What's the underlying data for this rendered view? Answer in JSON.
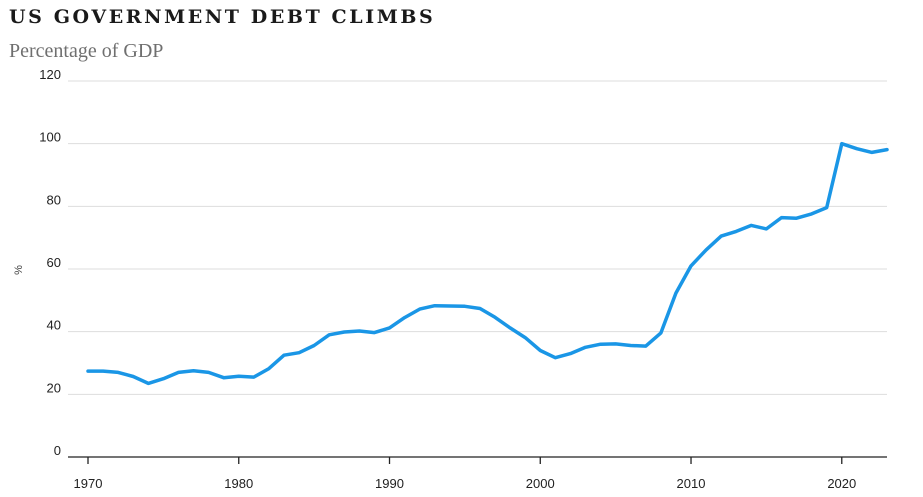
{
  "chart_data": {
    "type": "line",
    "title": "US GOVERNMENT DEBT CLIMBS",
    "subtitle": "Percentage of GDP",
    "ylabel": "%",
    "xlabel": "",
    "ylim": [
      0,
      120
    ],
    "xlim": [
      1970,
      2023
    ],
    "yticks": [
      0,
      20,
      40,
      60,
      80,
      100,
      120
    ],
    "xticks": [
      1970,
      1980,
      1990,
      2000,
      2010,
      2020
    ],
    "grid": true,
    "color": "#1a96e6",
    "x": [
      1970,
      1971,
      1972,
      1973,
      1974,
      1975,
      1976,
      1977,
      1978,
      1979,
      1980,
      1981,
      1982,
      1983,
      1984,
      1985,
      1986,
      1987,
      1988,
      1989,
      1990,
      1991,
      1992,
      1993,
      1994,
      1995,
      1996,
      1997,
      1998,
      1999,
      2000,
      2001,
      2002,
      2003,
      2004,
      2005,
      2006,
      2007,
      2008,
      2009,
      2010,
      2011,
      2012,
      2013,
      2014,
      2015,
      2016,
      2017,
      2018,
      2019,
      2020,
      2021,
      2022,
      2023
    ],
    "values": [
      27.4,
      27.4,
      27,
      25.7,
      23.5,
      25,
      27,
      27.5,
      27,
      25.3,
      25.8,
      25.5,
      28.2,
      32.5,
      33.3,
      35.6,
      39,
      39.9,
      40.2,
      39.7,
      41.2,
      44.5,
      47.2,
      48.3,
      48.2,
      48.1,
      47.4,
      44.6,
      41.2,
      38.1,
      34,
      31.7,
      33,
      35,
      36,
      36.1,
      35.6,
      35.4,
      39.6,
      52.3,
      61,
      66.1,
      70.5,
      72,
      73.9,
      72.8,
      76.4,
      76.2,
      77.6,
      79.6,
      100,
      98.4,
      97.2,
      98.1
    ]
  }
}
